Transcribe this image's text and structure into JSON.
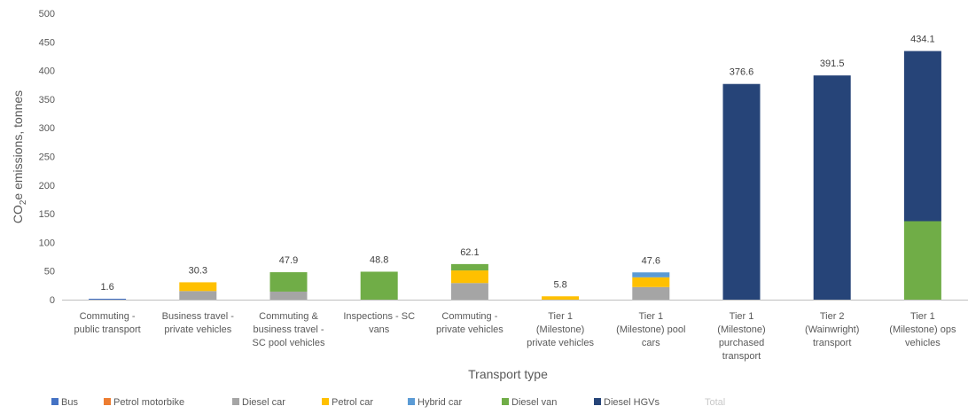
{
  "chart_data": {
    "type": "bar",
    "stacked": true,
    "title": "",
    "xlabel": "Transport type",
    "ylabel": "CO2e emissions, tonnes",
    "ylim": [
      0,
      500
    ],
    "yticks": [
      0,
      50,
      100,
      150,
      200,
      250,
      300,
      350,
      400,
      450,
      500
    ],
    "grid": false,
    "legend_position": "bottom",
    "categories": [
      [
        "Commuting -",
        "public transport"
      ],
      [
        "Business travel -",
        "private vehicles"
      ],
      [
        "Commuting &",
        "business travel -",
        "SC pool vehicles"
      ],
      [
        "Inspections - SC",
        "vans"
      ],
      [
        "Commuting -",
        "private vehicles"
      ],
      [
        "Tier 1",
        "(Milestone)",
        "private vehicles"
      ],
      [
        "Tier 1",
        "(Milestone) pool",
        "cars"
      ],
      [
        "Tier 1",
        "(Milestone)",
        "purchased",
        "transport"
      ],
      [
        "Tier 2",
        "(Wainwright)",
        "transport"
      ],
      [
        "Tier 1",
        "(Milestone) ops",
        "vehicles"
      ]
    ],
    "series": [
      {
        "name": "Bus",
        "color": "#4472C4",
        "values": [
          1.6,
          0,
          0,
          0,
          0,
          0,
          0,
          0,
          0,
          0
        ]
      },
      {
        "name": "Petrol motorbike",
        "color": "#ED7D31",
        "values": [
          0,
          0,
          0,
          0,
          0,
          0,
          0,
          0,
          0,
          0
        ]
      },
      {
        "name": "Diesel car",
        "color": "#A5A5A5",
        "values": [
          0,
          15,
          14,
          0,
          29,
          0,
          22,
          0,
          0,
          0
        ]
      },
      {
        "name": "Petrol car",
        "color": "#FFC000",
        "values": [
          0,
          15.3,
          0,
          0,
          22,
          5.8,
          17,
          0,
          0,
          0
        ]
      },
      {
        "name": "Hybrid car",
        "color": "#5B9BD5",
        "values": [
          0,
          0,
          0,
          0,
          0,
          0,
          8.6,
          0,
          0,
          0
        ]
      },
      {
        "name": "Diesel van",
        "color": "#70AD47",
        "values": [
          0,
          0,
          33.9,
          48.8,
          11.1,
          0,
          0,
          0,
          0,
          137
        ]
      },
      {
        "name": "Diesel HGVs",
        "color": "#264478",
        "values": [
          0,
          0,
          0,
          0,
          0,
          0,
          0,
          376.6,
          391.5,
          297.1
        ]
      },
      {
        "name": "Total",
        "color": "#bfbfbf",
        "values": [
          1.6,
          30.3,
          47.9,
          48.8,
          62.1,
          5.8,
          47.6,
          376.6,
          391.5,
          434.1
        ]
      }
    ],
    "total_labels": [
      "1.6",
      "30.3",
      "47.9",
      "48.8",
      "62.1",
      "5.8",
      "47.6",
      "376.6",
      "391.5",
      "434.1"
    ]
  }
}
